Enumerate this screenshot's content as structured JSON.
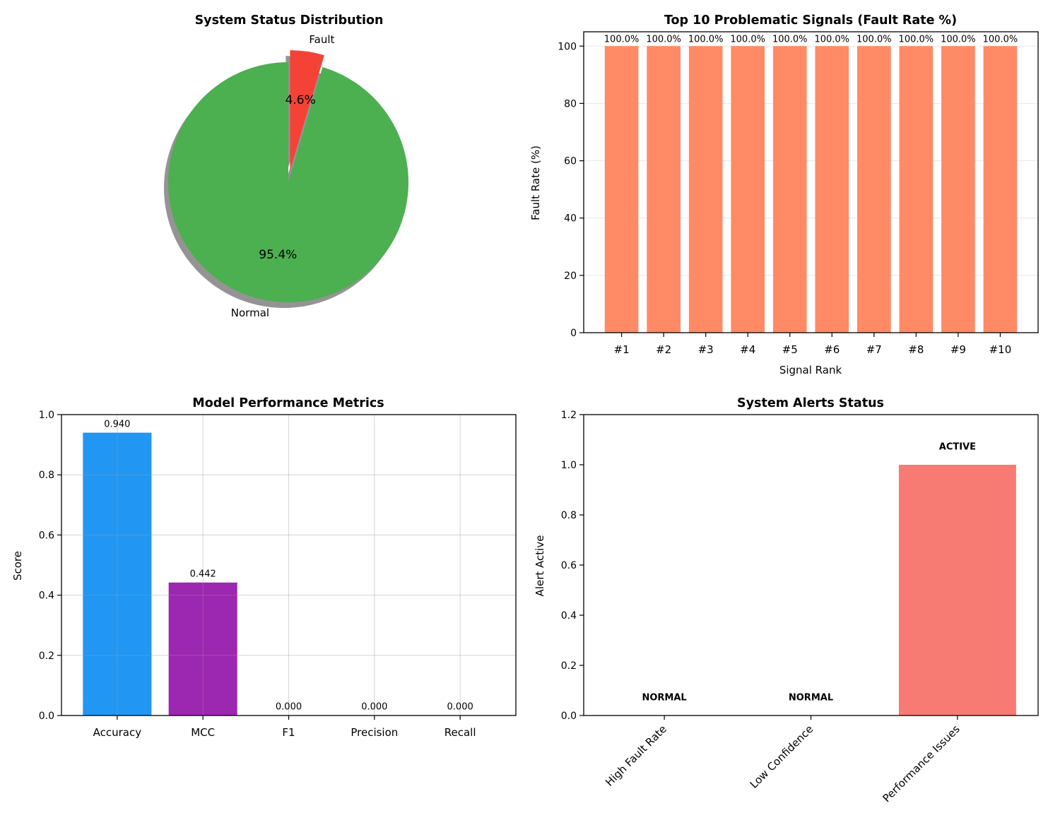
{
  "chart_data": [
    {
      "type": "pie",
      "title": "System Status Distribution",
      "labels": [
        "Normal",
        "Fault"
      ],
      "values": [
        95.4,
        4.6
      ],
      "value_labels": [
        "95.4%",
        "4.6%"
      ],
      "colors": [
        "#4caf50",
        "#f44336"
      ],
      "exploded": "Fault",
      "shadow": true
    },
    {
      "type": "bar",
      "title": "Top 10 Problematic Signals (Fault Rate %)",
      "xlabel": "Signal Rank",
      "ylabel": "Fault Rate (%)",
      "categories": [
        "#1",
        "#2",
        "#3",
        "#4",
        "#5",
        "#6",
        "#7",
        "#8",
        "#9",
        "#10"
      ],
      "values": [
        100,
        100,
        100,
        100,
        100,
        100,
        100,
        100,
        100,
        100
      ],
      "value_labels": [
        "100.0%",
        "100.0%",
        "100.0%",
        "100.0%",
        "100.0%",
        "100.0%",
        "100.0%",
        "100.0%",
        "100.0%",
        "100.0%"
      ],
      "ylim": [
        0,
        105
      ],
      "yticks": [
        "0",
        "20",
        "40",
        "60",
        "80",
        "100"
      ],
      "grid": "y",
      "color": "#ff8a65"
    },
    {
      "type": "bar",
      "title": "Model Performance Metrics",
      "xlabel": "",
      "ylabel": "Score",
      "categories": [
        "Accuracy",
        "MCC",
        "F1",
        "Precision",
        "Recall"
      ],
      "values": [
        0.94,
        0.442,
        0.0,
        0.0,
        0.0
      ],
      "value_labels": [
        "0.940",
        "0.442",
        "0.000",
        "0.000",
        "0.000"
      ],
      "ylim": [
        0,
        1.0
      ],
      "yticks": [
        "0.0",
        "0.2",
        "0.4",
        "0.6",
        "0.8",
        "1.0"
      ],
      "grid": "both",
      "colors": [
        "#2196f3",
        "#9c27b0",
        "#ff9800",
        "#4caf50",
        "#f44336"
      ]
    },
    {
      "type": "bar",
      "title": "System Alerts Status",
      "xlabel": "",
      "ylabel": "Alert Active",
      "categories": [
        "High Fault Rate",
        "Low Confidence",
        "Performance Issues"
      ],
      "values": [
        0,
        0,
        1
      ],
      "value_labels": [
        "NORMAL",
        "NORMAL",
        "ACTIVE"
      ],
      "ylim": [
        0,
        1.2
      ],
      "yticks": [
        "0.0",
        "0.2",
        "0.4",
        "0.6",
        "0.8",
        "1.0",
        "1.2"
      ],
      "grid": "none",
      "color": "#f77b72"
    }
  ]
}
